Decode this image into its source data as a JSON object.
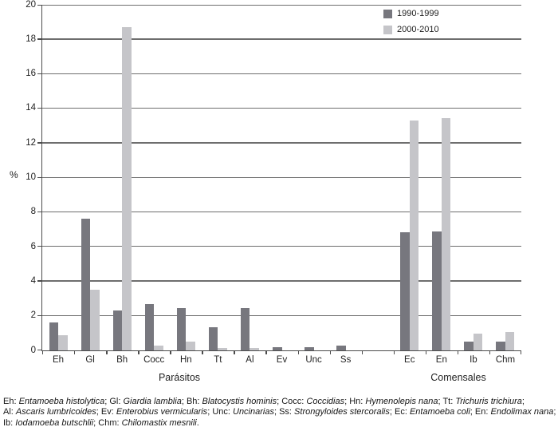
{
  "chart_data": {
    "type": "bar",
    "title": "",
    "xlabel": "",
    "ylabel": "%",
    "ylim": [
      0,
      20
    ],
    "ytick_step": 2,
    "grid": true,
    "legend_position": "top-right",
    "legend": [
      {
        "name": "1990-1999",
        "color": "#77777e"
      },
      {
        "name": "2000-2010",
        "color": "#c5c5c9"
      }
    ],
    "groups": [
      {
        "label": "Parásitos",
        "categories": [
          "Eh",
          "Gl",
          "Bh",
          "Cocc",
          "Hn",
          "Tt",
          "Al",
          "Ev",
          "Unc",
          "Ss"
        ],
        "series": [
          {
            "name": "1990-1999",
            "values": [
              1.6,
              7.6,
              2.3,
              2.7,
              2.45,
              1.35,
              2.45,
              0.2,
              0.2,
              0.3
            ]
          },
          {
            "name": "2000-2010",
            "values": [
              0.9,
              3.5,
              18.7,
              0.3,
              0.5,
              0.15,
              0.15,
              0,
              0,
              0
            ]
          }
        ]
      },
      {
        "label": "Comensales",
        "categories": [
          "Ec",
          "En",
          "Ib",
          "Chm"
        ],
        "series": [
          {
            "name": "1990-1999",
            "values": [
              6.85,
              6.9,
              0.5,
              0.5
            ]
          },
          {
            "name": "2000-2010",
            "values": [
              13.3,
              13.45,
              0.95,
              1.05
            ]
          }
        ]
      }
    ]
  },
  "colors": {
    "series_1990_1999": "#77777e",
    "series_2000_2010": "#c5c5c9",
    "gridline": "#6e6e6e",
    "axis": "#4c4c4c",
    "text": "#1f1f1f"
  },
  "footnote": {
    "lines": [
      [
        {
          "abbr": "Eh:",
          "name": "Entamoeba histolytica",
          "end": "; "
        },
        {
          "abbr": "Gl:",
          "name": "Giardia lamblia",
          "end": "; "
        },
        {
          "abbr": "Bh:",
          "name": "Blatocystis hominis",
          "end": "; "
        },
        {
          "abbr": "Cocc:",
          "name": "Coccidias",
          "end": "; "
        },
        {
          "abbr": "Hn:",
          "name": "Hymenolepis nana",
          "end": "; "
        },
        {
          "abbr": "Tt:",
          "name": "Trichuris trichiura",
          "end": ";"
        }
      ],
      [
        {
          "abbr": "Al:",
          "name": "Ascaris lumbricoides",
          "end": "; "
        },
        {
          "abbr": "Ev:",
          "name": "Enterobius vermicularis",
          "end": "; "
        },
        {
          "abbr": "Unc:",
          "name": "Uncinarias",
          "end": "; "
        },
        {
          "abbr": "Ss:",
          "name": "Strongyloides stercoralis",
          "end": "; "
        },
        {
          "abbr": "Ec:",
          "name": "Entamoeba coli",
          "end": "; "
        },
        {
          "abbr": "En:",
          "name": "Endolimax nana",
          "end": ";"
        }
      ],
      [
        {
          "abbr": "Ib:",
          "name": "Iodamoeba butschlii",
          "end": "; "
        },
        {
          "abbr": "Chm:",
          "name": "Chilomastix mesnili",
          "end": "."
        }
      ]
    ]
  }
}
